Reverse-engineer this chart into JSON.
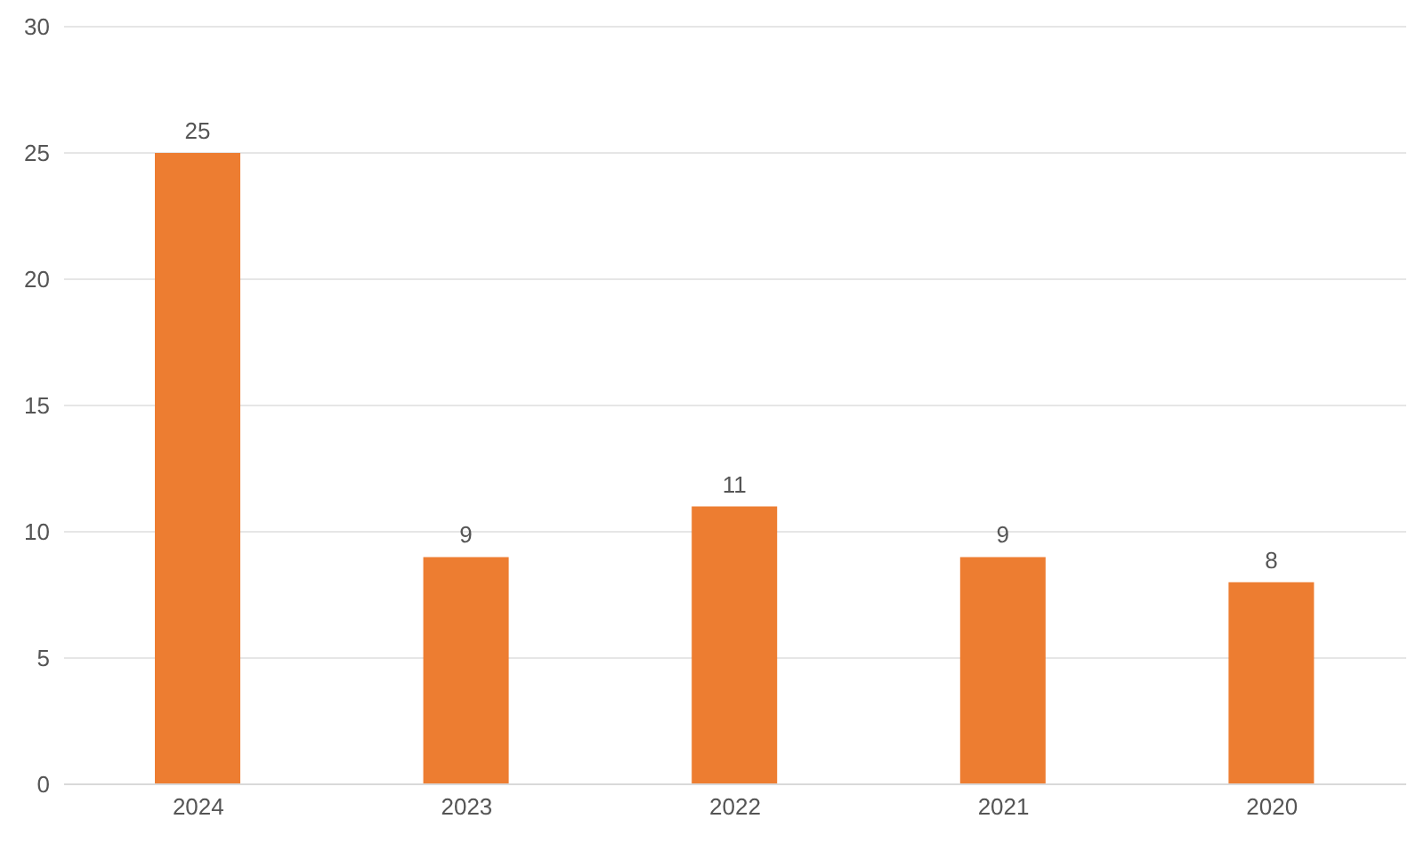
{
  "chart_data": {
    "type": "bar",
    "categories": [
      "2024",
      "2023",
      "2022",
      "2021",
      "2020"
    ],
    "values": [
      25,
      9,
      11,
      9,
      8
    ],
    "color": "#ed7d31",
    "ylim": [
      0,
      30
    ],
    "yticks": [
      0,
      5,
      10,
      15,
      20,
      25,
      30
    ],
    "grid": "y",
    "data_labels": true
  }
}
